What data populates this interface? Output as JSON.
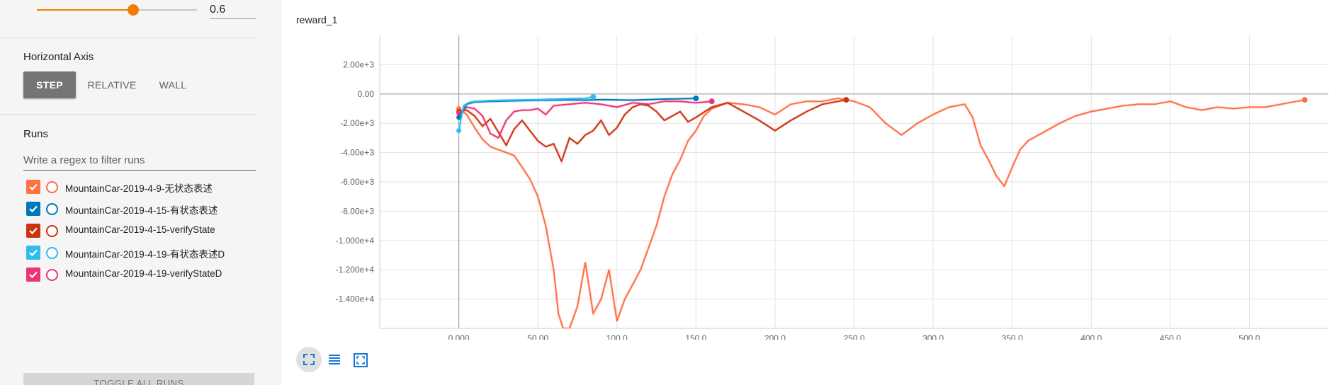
{
  "smoothing": {
    "value_text": "0.6",
    "fraction": 0.6
  },
  "horizontal_axis": {
    "title": "Horizontal Axis",
    "options": [
      "STEP",
      "RELATIVE",
      "WALL"
    ],
    "selected": "STEP"
  },
  "runs": {
    "title": "Runs",
    "filter_placeholder": "Write a regex to filter runs",
    "items": [
      {
        "label": "MountainCar-2019-4-9-无状态表述",
        "color": "#ff7043",
        "checked": true
      },
      {
        "label": "MountainCar-2019-4-15-有状态表述",
        "color": "#0077bb",
        "checked": true
      },
      {
        "label": "MountainCar-2019-4-15-verifyState",
        "color": "#cc3311",
        "checked": true
      },
      {
        "label": "MountainCar-2019-4-19-有状态表述D",
        "color": "#33bbee",
        "checked": true
      },
      {
        "label": "MountainCar-2019-4-19-verifyStateD",
        "color": "#ee3377",
        "checked": true
      }
    ],
    "toggle_label": "TOGGLE ALL RUNS"
  },
  "toolbar": {
    "icons": [
      "fullscreen-icon",
      "list-icon",
      "fit-domain-icon"
    ]
  },
  "chart_data": {
    "type": "line",
    "title": "reward_1",
    "xlabel": "",
    "ylabel": "",
    "xlim": [
      -50,
      550
    ],
    "ylim": [
      -16000,
      4000
    ],
    "x_ticks": [
      0,
      50,
      100,
      150,
      200,
      250,
      300,
      350,
      400,
      450,
      500
    ],
    "x_tick_labels": [
      "0.000",
      "50.00",
      "100.0",
      "150.0",
      "200.0",
      "250.0",
      "300.0",
      "350.0",
      "400.0",
      "450.0",
      "500.0"
    ],
    "y_ticks": [
      2000,
      0,
      -2000,
      -4000,
      -6000,
      -8000,
      -10000,
      -12000,
      -14000
    ],
    "y_tick_labels": [
      "2.00e+3",
      "0.00",
      "-2.00e+3",
      "-4.00e+3",
      "-6.00e+3",
      "-8.00e+3",
      "-1.000e+4",
      "-1.200e+4",
      "-1.400e+4"
    ],
    "grid": true,
    "legend": "none",
    "series": [
      {
        "name": "MountainCar-2019-4-9-无状态表述",
        "color": "#ff7043",
        "x": [
          0,
          5,
          10,
          15,
          20,
          25,
          30,
          35,
          40,
          45,
          50,
          55,
          60,
          63,
          66,
          70,
          75,
          80,
          85,
          90,
          95,
          100,
          105,
          110,
          115,
          120,
          125,
          130,
          135,
          140,
          145,
          150,
          155,
          160,
          170,
          180,
          190,
          200,
          210,
          220,
          230,
          240,
          250,
          260,
          270,
          280,
          290,
          300,
          310,
          320,
          325,
          330,
          335,
          340,
          345,
          350,
          355,
          360,
          370,
          380,
          390,
          400,
          410,
          420,
          430,
          440,
          450,
          460,
          470,
          480,
          490,
          500,
          510,
          520,
          530,
          535
        ],
        "y": [
          -1000,
          -1400,
          -2300,
          -3100,
          -3600,
          -3800,
          -4000,
          -4200,
          -5000,
          -5800,
          -7000,
          -9000,
          -12000,
          -15000,
          -16000,
          -16000,
          -14500,
          -11500,
          -15000,
          -14000,
          -12000,
          -15500,
          -14000,
          -13000,
          -12000,
          -10500,
          -9000,
          -7000,
          -5500,
          -4500,
          -3200,
          -2500,
          -1500,
          -1000,
          -600,
          -700,
          -900,
          -1400,
          -700,
          -500,
          -500,
          -300,
          -500,
          -900,
          -2000,
          -2800,
          -2000,
          -1400,
          -900,
          -700,
          -1600,
          -3500,
          -4500,
          -5600,
          -6300,
          -5000,
          -3800,
          -3200,
          -2600,
          -2000,
          -1500,
          -1200,
          -1000,
          -800,
          -700,
          -700,
          -500,
          -900,
          -1100,
          -900,
          -1000,
          -900,
          -900,
          -700,
          -500,
          -400
        ]
      },
      {
        "name": "MountainCar-2019-4-15-有状态表述",
        "color": "#0077bb",
        "x": [
          0,
          5,
          10,
          20,
          30,
          40,
          50,
          60,
          70,
          80,
          90,
          100,
          110,
          120,
          130,
          140,
          150
        ],
        "y": [
          -1600,
          -700,
          -550,
          -500,
          -480,
          -460,
          -430,
          -420,
          -400,
          -420,
          -380,
          -400,
          -420,
          -380,
          -350,
          -330,
          -300
        ]
      },
      {
        "name": "MountainCar-2019-4-15-verifyState",
        "color": "#cc3311",
        "x": [
          0,
          5,
          10,
          15,
          20,
          25,
          30,
          35,
          40,
          45,
          50,
          55,
          60,
          65,
          70,
          75,
          80,
          85,
          90,
          95,
          100,
          105,
          110,
          115,
          120,
          125,
          130,
          135,
          140,
          145,
          150,
          160,
          170,
          180,
          190,
          200,
          210,
          220,
          230,
          240,
          245
        ],
        "y": [
          -1200,
          -1100,
          -1500,
          -2200,
          -1700,
          -2600,
          -3500,
          -2400,
          -1800,
          -2500,
          -3200,
          -3600,
          -3400,
          -4600,
          -3000,
          -3400,
          -2800,
          -2500,
          -1800,
          -2800,
          -2300,
          -1400,
          -900,
          -700,
          -800,
          -1200,
          -1800,
          -1500,
          -1200,
          -1900,
          -1600,
          -900,
          -600,
          -1200,
          -1800,
          -2500,
          -1800,
          -1200,
          -700,
          -500,
          -400
        ]
      },
      {
        "name": "MountainCar-2019-4-19-有状态表述D",
        "color": "#33bbee",
        "x": [
          0,
          3,
          6,
          10,
          20,
          30,
          40,
          50,
          60,
          70,
          80,
          85
        ],
        "y": [
          -2500,
          -800,
          -600,
          -500,
          -450,
          -420,
          -400,
          -380,
          -350,
          -320,
          -300,
          -200
        ]
      },
      {
        "name": "MountainCar-2019-4-19-verifyStateD",
        "color": "#ee3377",
        "x": [
          0,
          5,
          10,
          15,
          20,
          25,
          30,
          35,
          40,
          45,
          50,
          55,
          60,
          70,
          80,
          90,
          100,
          110,
          120,
          130,
          140,
          150,
          160
        ],
        "y": [
          -1300,
          -900,
          -1000,
          -1500,
          -2700,
          -3000,
          -1800,
          -1200,
          -1100,
          -1100,
          -1000,
          -1400,
          -800,
          -700,
          -600,
          -700,
          -900,
          -600,
          -700,
          -500,
          -500,
          -600,
          -500
        ]
      }
    ]
  }
}
